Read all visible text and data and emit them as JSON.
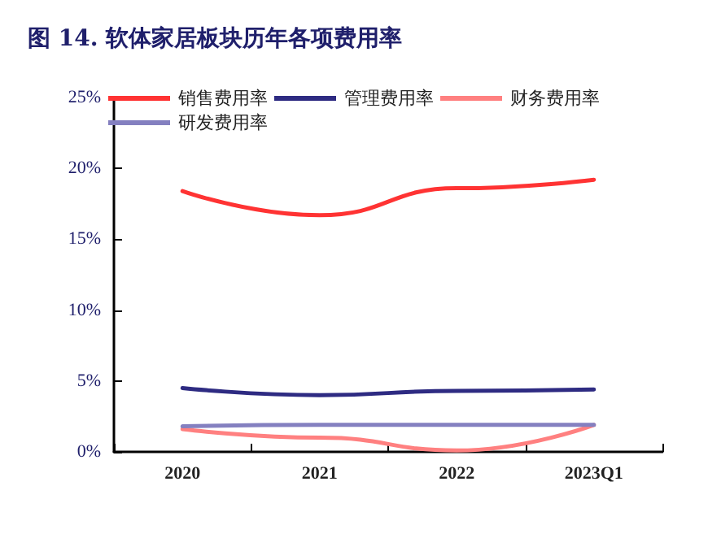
{
  "chart_data": {
    "type": "line",
    "title": "图 14. 软体家居板块历年各项费用率",
    "categories": [
      "2020",
      "2021",
      "2022",
      "2023Q1"
    ],
    "series": [
      {
        "name": "销售费用率",
        "color": "#ff3333",
        "values": [
          18.4,
          16.7,
          18.6,
          19.2
        ]
      },
      {
        "name": "管理费用率",
        "color": "#2e2b82",
        "values": [
          4.5,
          4.0,
          4.3,
          4.4
        ]
      },
      {
        "name": "财务费用率",
        "color": "#ff8080",
        "values": [
          1.6,
          1.0,
          0.1,
          1.9
        ]
      },
      {
        "name": "研发费用率",
        "color": "#8480c0",
        "values": [
          1.8,
          1.9,
          1.9,
          1.9
        ]
      }
    ],
    "ylim": [
      0,
      25
    ],
    "yticks": [
      {
        "value": 0,
        "label": "0%"
      },
      {
        "value": 5,
        "label": "5%"
      },
      {
        "value": 10,
        "label": "10%"
      },
      {
        "value": 15,
        "label": "15%"
      },
      {
        "value": 20,
        "label": "20%"
      },
      {
        "value": 25,
        "label": "25%"
      }
    ],
    "legend": "top",
    "grid": false,
    "marker": "none",
    "line_style": "solid"
  }
}
